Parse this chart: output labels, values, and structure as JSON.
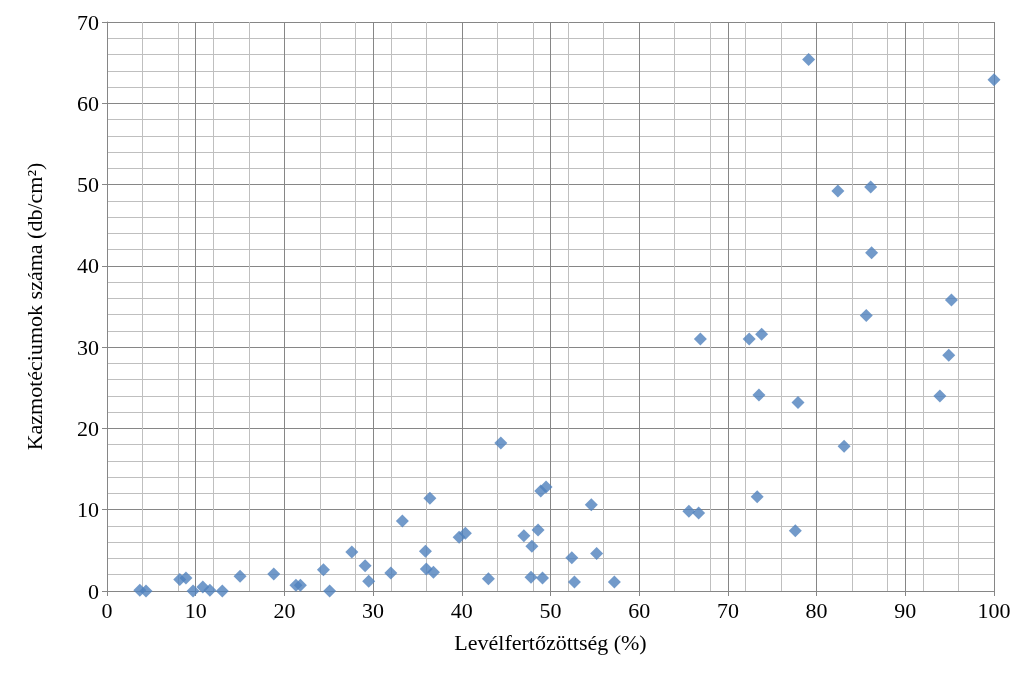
{
  "chart_data": {
    "type": "scatter",
    "xlabel": "Levélfertőzöttség (%)",
    "ylabel": "Kazmotéciumok száma (db/cm²)",
    "xlim": [
      0,
      100
    ],
    "xticks": [
      0,
      10,
      20,
      30,
      40,
      50,
      60,
      70,
      80,
      90,
      100
    ],
    "ylim": [
      0,
      70
    ],
    "yticks": [
      0,
      10,
      20,
      30,
      40,
      50,
      60,
      70
    ],
    "grid": true,
    "marker": "diamond",
    "series": [
      {
        "color": "#4f81bd",
        "x": [
          3.7,
          4.4,
          8.2,
          8.9,
          9.7,
          10.8,
          11.6,
          13.0,
          15.0,
          18.8,
          21.3,
          21.8,
          24.4,
          25.1,
          27.6,
          29.1,
          29.5,
          32.0,
          33.3,
          35.9,
          36.0,
          36.4,
          36.8,
          39.7,
          40.4,
          43.0,
          44.4,
          47.0,
          47.9,
          47.8,
          48.6,
          48.9,
          49.1,
          49.5,
          52.4,
          52.7,
          54.6,
          55.2,
          57.2,
          65.6,
          66.7,
          66.9,
          72.4,
          73.3,
          73.5,
          73.8,
          77.6,
          77.9,
          79.1,
          82.4,
          83.1,
          85.6,
          86.1,
          86.2,
          93.9,
          94.9,
          95.2,
          100.0
        ],
        "values": [
          0.1,
          0,
          1.4,
          1.6,
          0,
          0.5,
          0.1,
          0,
          1.8,
          2.1,
          0.7,
          0.7,
          2.6,
          0,
          4.8,
          3.1,
          1.2,
          2.2,
          8.6,
          4.9,
          2.7,
          11.4,
          2.3,
          6.6,
          7.1,
          1.5,
          18.2,
          6.8,
          5.5,
          1.7,
          7.5,
          12.3,
          1.6,
          12.8,
          4.1,
          1.1,
          10.6,
          4.6,
          1.1,
          9.8,
          9.6,
          31.0,
          31.0,
          11.6,
          24.1,
          31.6,
          7.4,
          23.2,
          65.4,
          49.2,
          17.8,
          33.9,
          49.7,
          41.6,
          24.0,
          29.0,
          35.8,
          62.9
        ]
      }
    ]
  }
}
